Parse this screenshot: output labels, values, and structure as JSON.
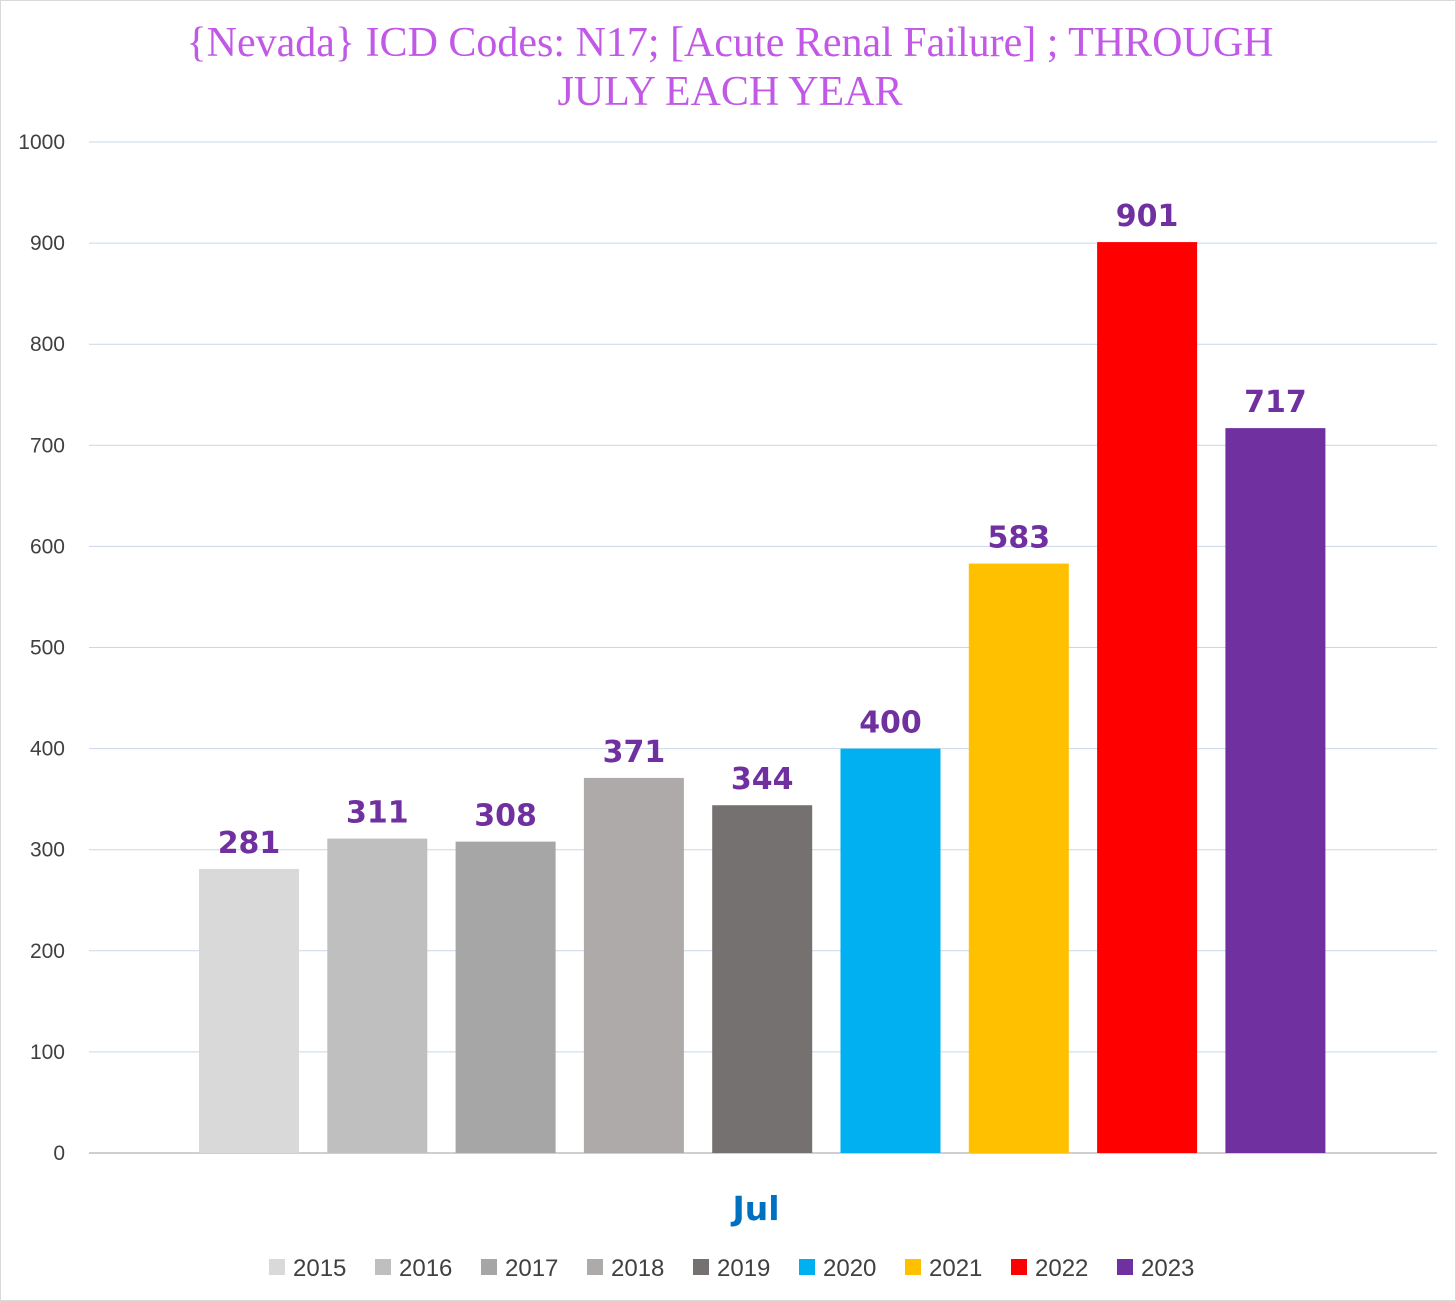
{
  "chart_data": {
    "type": "bar",
    "title_lines": [
      "{Nevada}   ICD Codes: N17;  [Acute Renal Failure] ; THROUGH",
      "JULY EACH YEAR"
    ],
    "category": "Jul",
    "series": [
      {
        "name": "2015",
        "value": 281,
        "color": "#d9d9d9"
      },
      {
        "name": "2016",
        "value": 311,
        "color": "#bfbfbf"
      },
      {
        "name": "2017",
        "value": 308,
        "color": "#a6a6a6"
      },
      {
        "name": "2018",
        "value": 371,
        "color": "#aeaaaa"
      },
      {
        "name": "2019",
        "value": 344,
        "color": "#767171"
      },
      {
        "name": "2020",
        "value": 400,
        "color": "#00b0f0"
      },
      {
        "name": "2021",
        "value": 583,
        "color": "#ffc000"
      },
      {
        "name": "2022",
        "value": 901,
        "color": "#ff0000"
      },
      {
        "name": "2023",
        "value": 717,
        "color": "#7030a0"
      }
    ],
    "y_ticks": [
      "0",
      "100",
      "200",
      "300",
      "400",
      "500",
      "600",
      "700",
      "800",
      "900",
      "1000"
    ],
    "ylim": [
      0,
      1000
    ],
    "grid": true,
    "legend_position": "bottom",
    "xlabel": "",
    "ylabel": ""
  }
}
